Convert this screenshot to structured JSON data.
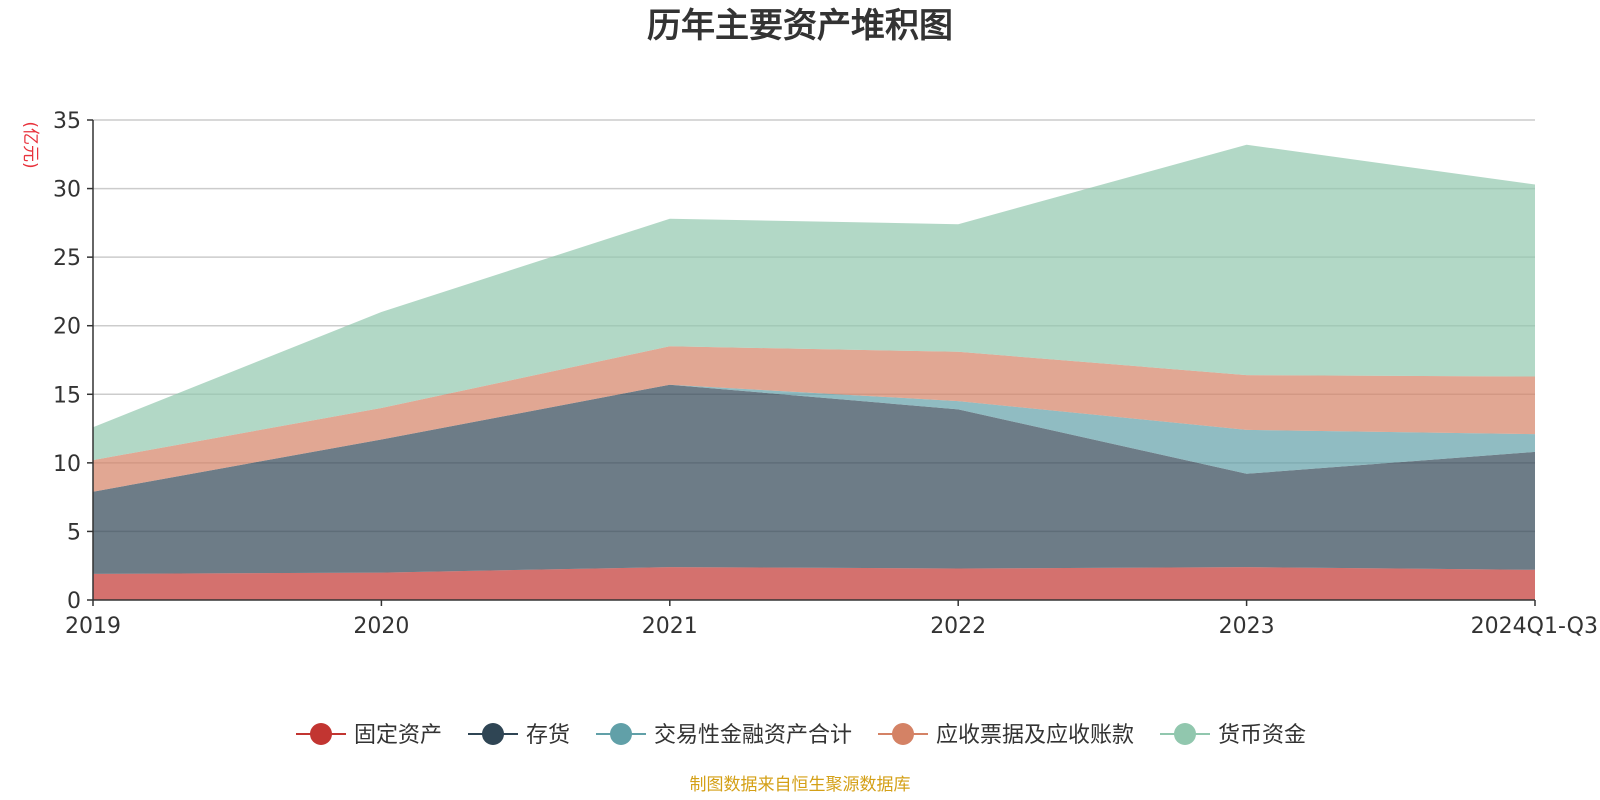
{
  "chart_data": {
    "type": "area",
    "stacked": true,
    "title": "历年主要资产堆积图",
    "ylabel": "(亿元)",
    "xlabel": "",
    "categories": [
      "2019",
      "2020",
      "2021",
      "2022",
      "2023",
      "2024Q1-Q3"
    ],
    "ylim": [
      0,
      35
    ],
    "yticks": [
      0,
      5,
      10,
      15,
      20,
      25,
      30,
      35
    ],
    "grid": true,
    "legend_position": "bottom",
    "series": [
      {
        "name": "固定资产",
        "color": "#c23531",
        "values": [
          1.9,
          2.0,
          2.4,
          2.3,
          2.4,
          2.2
        ]
      },
      {
        "name": "存货",
        "color": "#2f4554",
        "values": [
          6.0,
          9.7,
          13.3,
          11.6,
          6.8,
          8.6
        ]
      },
      {
        "name": "交易性金融资产合计",
        "color": "#61a0a8",
        "values": [
          0.0,
          0.0,
          0.0,
          0.6,
          3.2,
          1.3
        ]
      },
      {
        "name": "应收票据及应收账款",
        "color": "#d48265",
        "values": [
          2.3,
          2.3,
          2.8,
          3.6,
          4.0,
          4.2
        ]
      },
      {
        "name": "货币资金",
        "color": "#91c7ae",
        "values": [
          2.4,
          7.0,
          9.3,
          9.3,
          16.8,
          14.0
        ]
      }
    ],
    "source": "制图数据来自恒生聚源数据库"
  }
}
